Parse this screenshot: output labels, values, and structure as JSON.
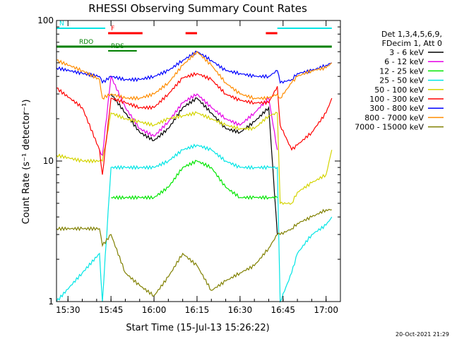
{
  "chart_data": {
    "type": "line",
    "title": "RHESSI Observing Summary Count Rates",
    "xlabel": "Start Time (15-Jul-13 15:26:22)",
    "ylabel": "Count Rate (s⁻¹ detector⁻¹)",
    "y_scale": "log",
    "ylim": [
      1,
      100
    ],
    "xlim": [
      "15:26",
      "17:05"
    ],
    "grid": false,
    "legend_position": "right",
    "x_ticks": [
      "15:30",
      "15:45",
      "16:00",
      "16:15",
      "16:30",
      "16:45",
      "17:00"
    ],
    "y_ticks": [
      "1",
      "10",
      "100"
    ],
    "legend_header": [
      "Det 1,3,4,5,6,9,",
      "FDecim 1, Att 0"
    ],
    "timestamp": "20-Oct-2021 21:29",
    "flags": [
      {
        "label": "N",
        "color": "#00e5e5",
        "intervals": [
          [
            "15:26",
            "15:43"
          ],
          [
            "16:43",
            "17:02"
          ]
        ]
      },
      {
        "label": "F",
        "color": "#ff0000",
        "intervals": [
          [
            "15:44",
            "15:56"
          ],
          [
            "16:11",
            "16:15"
          ],
          [
            "16:39",
            "16:43"
          ]
        ]
      },
      {
        "label": "RDO",
        "color": "#008000",
        "intervals": [
          [
            "15:26",
            "17:02"
          ]
        ]
      },
      {
        "label": "RDS",
        "color": "#008000",
        "intervals": [
          [
            "15:44",
            "15:54"
          ]
        ]
      }
    ],
    "x": [
      "15:26",
      "15:35",
      "15:41",
      "15:42",
      "15:45",
      "15:50",
      "15:55",
      "16:00",
      "16:05",
      "16:10",
      "16:15",
      "16:20",
      "16:25",
      "16:30",
      "16:35",
      "16:40",
      "16:43",
      "16:44",
      "16:48",
      "16:50",
      "16:55",
      "17:00",
      "17:02"
    ],
    "series": [
      {
        "name": "3 - 6 keV",
        "color": "#000000",
        "values": [
          null,
          null,
          null,
          null,
          30,
          22,
          16,
          14,
          17,
          24,
          28,
          22,
          17,
          16,
          19,
          24,
          3,
          null,
          null,
          null,
          null,
          null,
          null
        ]
      },
      {
        "name": "6 - 12 keV",
        "color": "#e600e6",
        "values": [
          null,
          null,
          12,
          11,
          40,
          24,
          17,
          15,
          19,
          26,
          30,
          24,
          20,
          18,
          22,
          28,
          12,
          null,
          null,
          null,
          null,
          null,
          null
        ]
      },
      {
        "name": "12 - 25 keV",
        "color": "#00e600",
        "values": [
          null,
          null,
          null,
          null,
          5.5,
          5.5,
          5.5,
          5.5,
          6.5,
          9,
          10,
          9,
          6.5,
          5.5,
          5.5,
          5.5,
          5.5,
          null,
          null,
          null,
          null,
          null,
          null
        ]
      },
      {
        "name": "25 - 50 keV",
        "color": "#00e5e5",
        "values": [
          1,
          1.6,
          2.2,
          1,
          9,
          9,
          9,
          9,
          10,
          12,
          13,
          12,
          10,
          9,
          9,
          9,
          9,
          1,
          1.6,
          2.2,
          3,
          3.5,
          4
        ]
      },
      {
        "name": "50 - 100 keV",
        "color": "#d4d400",
        "values": [
          11,
          10,
          10,
          10,
          22,
          20,
          19,
          18,
          20,
          21,
          22,
          20,
          18,
          17,
          17,
          21,
          22,
          5,
          5,
          6,
          7,
          8,
          12
        ]
      },
      {
        "name": "100 - 300 keV",
        "color": "#ff0000",
        "values": [
          33,
          24,
          12,
          8,
          28,
          26,
          24,
          24,
          30,
          39,
          42,
          38,
          30,
          27,
          26,
          26,
          34,
          18,
          12,
          13,
          16,
          22,
          28
        ]
      },
      {
        "name": "300 - 800 keV",
        "color": "#0000ff",
        "values": [
          46,
          42,
          40,
          36,
          40,
          38,
          38,
          40,
          44,
          52,
          60,
          52,
          44,
          42,
          40,
          40,
          44,
          36,
          38,
          42,
          44,
          48,
          50
        ]
      },
      {
        "name": "800 - 7000 keV",
        "color": "#ff8c00",
        "values": [
          52,
          44,
          38,
          28,
          30,
          28,
          28,
          30,
          36,
          48,
          60,
          48,
          36,
          30,
          28,
          28,
          30,
          28,
          36,
          40,
          44,
          46,
          50
        ]
      },
      {
        "name": "7000 - 15000 keV",
        "color": "#808000",
        "values": [
          3.3,
          3.3,
          3.3,
          2.5,
          3,
          1.6,
          1.3,
          1.1,
          1.5,
          2.2,
          1.8,
          1.2,
          1.4,
          1.6,
          1.8,
          2.4,
          3,
          3,
          3.3,
          3.6,
          4,
          4.5,
          4.5
        ]
      }
    ]
  }
}
